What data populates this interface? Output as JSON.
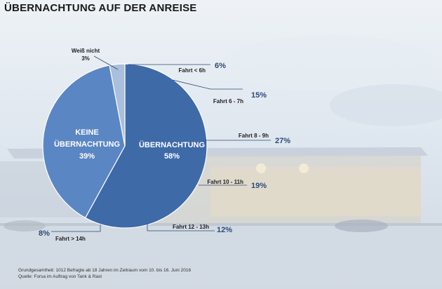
{
  "header": {
    "title": "ÜBERNACHTUNG AUF DER ANREISE"
  },
  "footer": {
    "line1": "Grundgesamtheit: 1012 Befragte ab 18 Jahren im Zeitraum vom 10. bis 16. Juni 2016",
    "line2": "Quelle: Forsa im Auftrag von Tank & Rast"
  },
  "colors": {
    "overnight": "#3f6aa8",
    "no_overnight": "#5b86c4",
    "dont_know": "#a9bfdc",
    "value_text": "#2e4a78",
    "leader": "#2e4a78"
  },
  "chart_data": {
    "type": "pie",
    "title": "ÜBERNACHTUNG AUF DER ANREISE",
    "slices": [
      {
        "label": "ÜBERNACHTUNG",
        "value": 58
      },
      {
        "label": "KEINE ÜBERNACHTUNG",
        "value": 39
      },
      {
        "label": "Weiß nicht",
        "value": 3
      }
    ],
    "breakdown_of": "ÜBERNACHTUNG",
    "breakdown": [
      {
        "label": "Fahrt < 6h",
        "value": 6
      },
      {
        "label": "Fahrt 6 - 7h",
        "value": 15
      },
      {
        "label": "Fahrt 8 - 9h",
        "value": 27
      },
      {
        "label": "Fahrt 10 - 11h",
        "value": 19
      },
      {
        "label": "Fahrt 12 - 13h",
        "value": 12
      },
      {
        "label": "Fahrt > 14h",
        "value": 8
      }
    ]
  }
}
